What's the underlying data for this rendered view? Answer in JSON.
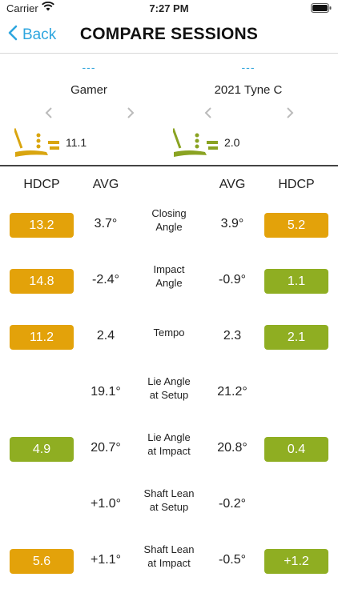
{
  "status": {
    "carrier": "Carrier",
    "time": "7:27 PM"
  },
  "nav": {
    "back_label": "Back",
    "title": "COMPARE SESSIONS"
  },
  "sessions": [
    {
      "dashes": "---",
      "name": "Gamer",
      "hdcp": "11.1",
      "icon_color": "#d9a50f",
      "icon": "putter-icon"
    },
    {
      "dashes": "---",
      "name": "2021 Tyne C",
      "hdcp": "2.0",
      "icon_color": "#8aa322",
      "icon": "putter-icon"
    }
  ],
  "headers": {
    "hdcp_left": "HDCP",
    "avg_left": "AVG",
    "avg_right": "AVG",
    "hdcp_right": "HDCP"
  },
  "colors": {
    "gold": "#e3a20a",
    "green": "#8fae22",
    "accent": "#2ea6df"
  },
  "rows": [
    {
      "label_1": "Closing",
      "label_2": "Angle",
      "left_hdcp": "13.2",
      "left_color": "#e3a20a",
      "left_avg": "3.7°",
      "right_avg": "3.9°",
      "right_hdcp": "5.2",
      "right_color": "#e3a20a"
    },
    {
      "label_1": "Impact",
      "label_2": "Angle",
      "left_hdcp": "14.8",
      "left_color": "#e3a20a",
      "left_avg": "-2.4°",
      "right_avg": "-0.9°",
      "right_hdcp": "1.1",
      "right_color": "#8fae22"
    },
    {
      "label_1": "Tempo",
      "label_2": "",
      "left_hdcp": "11.2",
      "left_color": "#e3a20a",
      "left_avg": "2.4",
      "right_avg": "2.3",
      "right_hdcp": "2.1",
      "right_color": "#8fae22"
    },
    {
      "label_1": "Lie Angle",
      "label_2": "at Setup",
      "left_hdcp": "",
      "left_color": "",
      "left_avg": "19.1°",
      "right_avg": "21.2°",
      "right_hdcp": "",
      "right_color": ""
    },
    {
      "label_1": "Lie Angle",
      "label_2": "at Impact",
      "left_hdcp": "4.9",
      "left_color": "#8fae22",
      "left_avg": "20.7°",
      "right_avg": "20.8°",
      "right_hdcp": "0.4",
      "right_color": "#8fae22"
    },
    {
      "label_1": "Shaft Lean",
      "label_2": "at Setup",
      "left_hdcp": "",
      "left_color": "",
      "left_avg": "+1.0°",
      "right_avg": "-0.2°",
      "right_hdcp": "",
      "right_color": ""
    },
    {
      "label_1": "Shaft Lean",
      "label_2": "at Impact",
      "left_hdcp": "5.6",
      "left_color": "#e3a20a",
      "left_avg": "+1.1°",
      "right_avg": "-0.5°",
      "right_hdcp": "+1.2",
      "right_color": "#8fae22"
    }
  ]
}
